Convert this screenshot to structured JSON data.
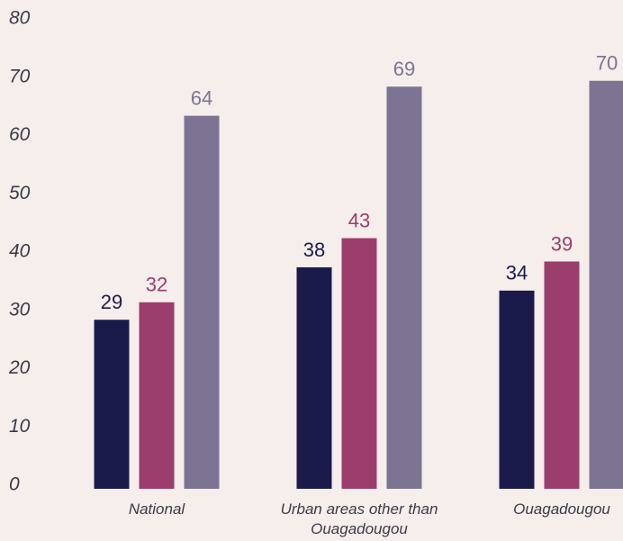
{
  "chart_data": {
    "type": "bar",
    "categories": [
      "National",
      "Urban areas other than Ouagadougou",
      "Ouagadougou"
    ],
    "series": [
      {
        "color": "#1b1b4b",
        "values": [
          29,
          38,
          34
        ]
      },
      {
        "color": "#9b3d6d",
        "values": [
          32,
          43,
          39
        ]
      },
      {
        "color": "#7c7492",
        "values": [
          64,
          69,
          70
        ]
      }
    ],
    "ylim": [
      0,
      80
    ],
    "yticks": [
      0,
      10,
      20,
      30,
      40,
      50,
      60,
      70,
      80
    ],
    "grid": false
  }
}
